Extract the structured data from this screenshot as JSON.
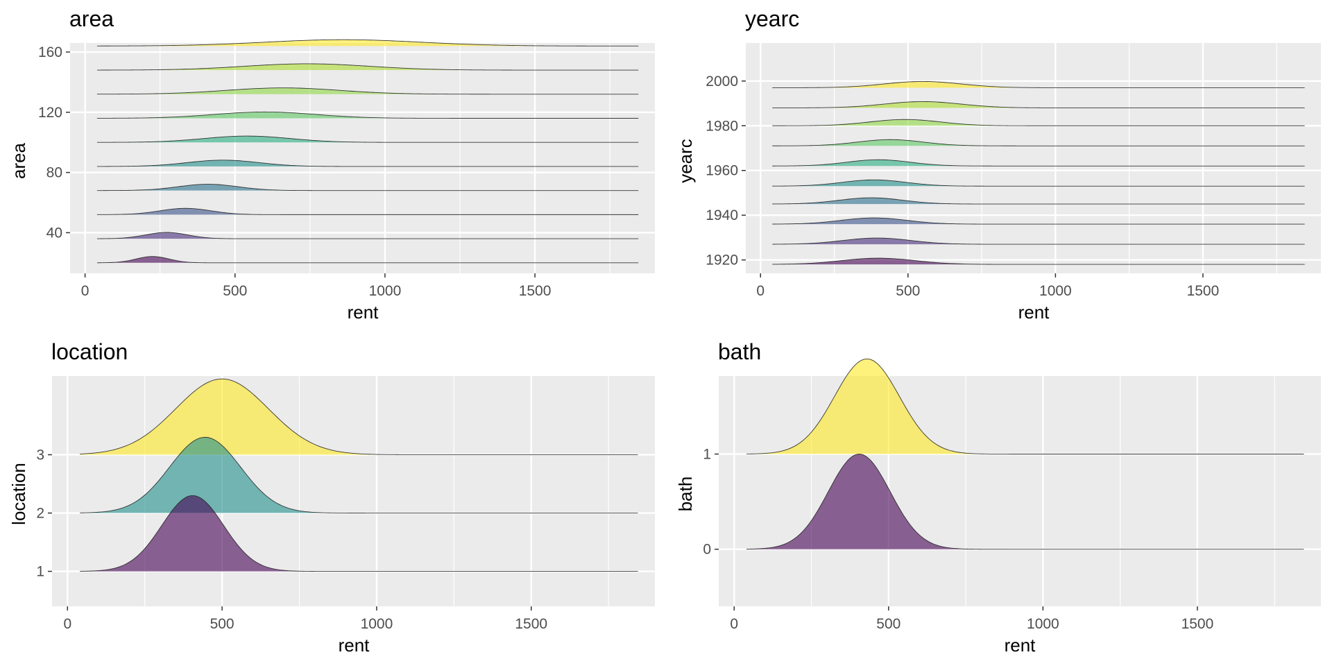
{
  "chart_data": [
    {
      "type": "ridgeline",
      "title": "area",
      "xlabel": "rent",
      "ylabel": "area",
      "xlim": [
        -50,
        1900
      ],
      "x_ticks": [
        0,
        500,
        1000,
        1500
      ],
      "x_tick_labels": [
        "0",
        "500",
        "1000",
        "1500"
      ],
      "y_ticks": [
        40,
        80,
        120,
        160
      ],
      "y_tick_labels": [
        "40",
        "80",
        "120",
        "160"
      ],
      "ylim": [
        13,
        166
      ],
      "x_range": [
        40,
        1845
      ],
      "scale": 4.2,
      "series": [
        {
          "baseline": 20,
          "mean": 225,
          "sd": 55,
          "color": "#440154"
        },
        {
          "baseline": 36,
          "mean": 272,
          "sd": 70,
          "color": "#472D7B"
        },
        {
          "baseline": 52,
          "mean": 335,
          "sd": 85,
          "color": "#3B528B"
        },
        {
          "baseline": 68,
          "mean": 410,
          "sd": 100,
          "color": "#2C728E"
        },
        {
          "baseline": 84,
          "mean": 460,
          "sd": 120,
          "color": "#21908C"
        },
        {
          "baseline": 100,
          "mean": 540,
          "sd": 145,
          "color": "#28AE80"
        },
        {
          "baseline": 116,
          "mean": 600,
          "sd": 170,
          "color": "#5DC863"
        },
        {
          "baseline": 132,
          "mean": 660,
          "sd": 190,
          "color": "#8FD744"
        },
        {
          "baseline": 148,
          "mean": 740,
          "sd": 210,
          "color": "#ADDC30"
        },
        {
          "baseline": 164,
          "mean": 860,
          "sd": 260,
          "color": "#FDE725"
        }
      ]
    },
    {
      "type": "ridgeline",
      "title": "yearc",
      "xlabel": "rent",
      "ylabel": "yearc",
      "xlim": [
        -50,
        1900
      ],
      "x_ticks": [
        0,
        500,
        1000,
        1500
      ],
      "x_tick_labels": [
        "0",
        "500",
        "1000",
        "1500"
      ],
      "y_ticks": [
        1920,
        1940,
        1960,
        1980,
        2000
      ],
      "y_tick_labels": [
        "1920",
        "1940",
        "1960",
        "1980",
        "2000"
      ],
      "ylim": [
        1914,
        2017
      ],
      "x_range": [
        40,
        1845
      ],
      "scale": 2.8,
      "series": [
        {
          "baseline": 1918,
          "mean": 400,
          "sd": 125,
          "color": "#440154"
        },
        {
          "baseline": 1927,
          "mean": 395,
          "sd": 115,
          "color": "#472D7B"
        },
        {
          "baseline": 1936,
          "mean": 385,
          "sd": 112,
          "color": "#3B528B"
        },
        {
          "baseline": 1945,
          "mean": 375,
          "sd": 108,
          "color": "#2C728E"
        },
        {
          "baseline": 1953,
          "mean": 385,
          "sd": 108,
          "color": "#21908C"
        },
        {
          "baseline": 1962,
          "mean": 400,
          "sd": 108,
          "color": "#28AE80"
        },
        {
          "baseline": 1971,
          "mean": 440,
          "sd": 112,
          "color": "#5DC863"
        },
        {
          "baseline": 1980,
          "mean": 490,
          "sd": 120,
          "color": "#8FD744"
        },
        {
          "baseline": 1988,
          "mean": 550,
          "sd": 130,
          "color": "#ADDC30"
        },
        {
          "baseline": 1997,
          "mean": 550,
          "sd": 130,
          "color": "#FDE725"
        }
      ]
    },
    {
      "type": "ridgeline",
      "title": "location",
      "xlabel": "rent",
      "ylabel": "location",
      "xlim": [
        -50,
        1900
      ],
      "x_ticks": [
        0,
        500,
        1000,
        1500
      ],
      "x_tick_labels": [
        "0",
        "500",
        "1000",
        "1500"
      ],
      "y_ticks": [
        1,
        2,
        3
      ],
      "y_tick_labels": [
        "1",
        "2",
        "3"
      ],
      "ylim": [
        0.4,
        4.35
      ],
      "x_range": [
        40,
        1845
      ],
      "scale": 1.3,
      "series": [
        {
          "baseline": 1,
          "mean": 405,
          "sd": 100,
          "color": "#440154"
        },
        {
          "baseline": 2,
          "mean": 445,
          "sd": 115,
          "color": "#21908C"
        },
        {
          "baseline": 3,
          "mean": 500,
          "sd": 150,
          "color": "#FDE725"
        }
      ]
    },
    {
      "type": "ridgeline",
      "title": "bath",
      "xlabel": "rent",
      "ylabel": "bath",
      "xlim": [
        -50,
        1900
      ],
      "x_ticks": [
        0,
        500,
        1000,
        1500
      ],
      "x_tick_labels": [
        "0",
        "500",
        "1000",
        "1500"
      ],
      "y_ticks": [
        0,
        1
      ],
      "y_tick_labels": [
        "0",
        "1"
      ],
      "ylim": [
        -0.6,
        1.82
      ],
      "x_range": [
        40,
        1845
      ],
      "scale": 1.0,
      "series": [
        {
          "baseline": 0,
          "mean": 405,
          "sd": 100,
          "color": "#440154"
        },
        {
          "baseline": 1,
          "mean": 430,
          "sd": 105,
          "color": "#FDE725"
        }
      ]
    }
  ]
}
